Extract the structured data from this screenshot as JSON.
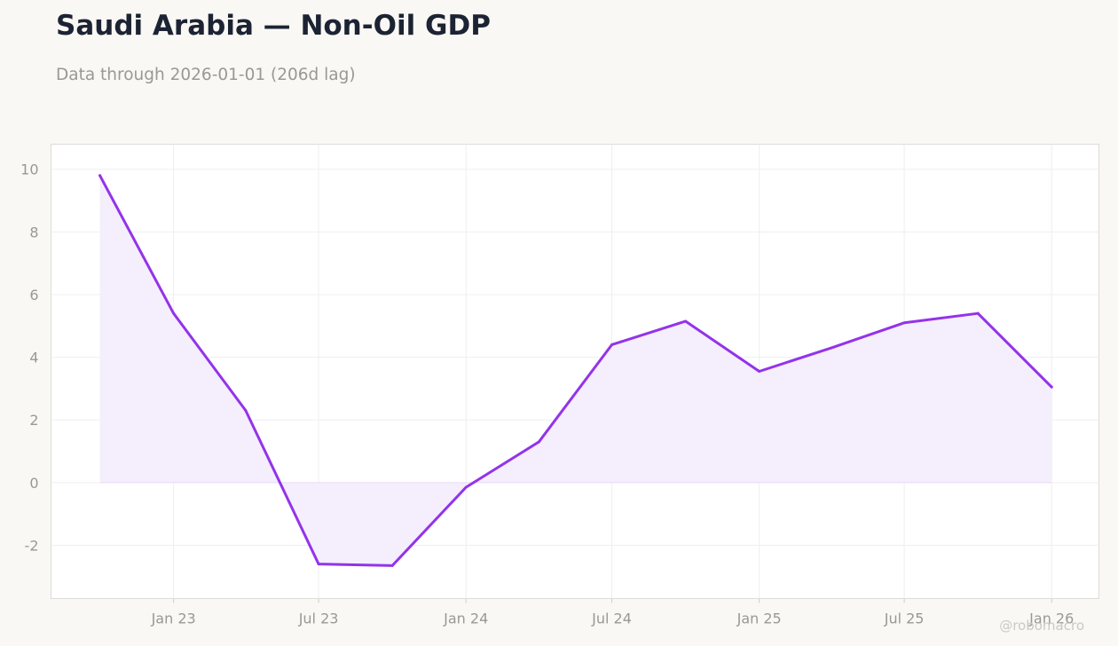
{
  "title": "Saudi Arabia — Non-Oil GDP",
  "subtitle": "Data through 2026-01-01 (206d lag)",
  "watermark": "@robomacro",
  "colors": {
    "line": "#9333ea",
    "fill": "#f5eefd",
    "background": "#f9f8f5",
    "plot_background": "#ffffff",
    "grid": "#efeef0"
  },
  "chart_data": {
    "type": "area",
    "title": "Saudi Arabia — Non-Oil GDP",
    "subtitle": "Data through 2026-01-01 (206d lag)",
    "x": [
      "2022-10-01",
      "2023-01-01",
      "2023-04-01",
      "2023-07-01",
      "2023-10-01",
      "2024-01-01",
      "2024-04-01",
      "2024-07-01",
      "2024-10-01",
      "2025-01-01",
      "2025-04-01",
      "2025-07-01",
      "2025-10-01",
      "2026-01-01"
    ],
    "series": [
      {
        "values": [
          9.8,
          5.4,
          2.3,
          -2.6,
          -2.65,
          -0.15,
          1.3,
          4.4,
          5.15,
          3.55,
          4.3,
          5.1,
          5.4,
          3.05
        ]
      }
    ],
    "x_ticks": [
      "2023-01-01",
      "2023-07-01",
      "2024-01-01",
      "2024-07-01",
      "2025-01-01",
      "2025-07-01",
      "2026-01-01"
    ],
    "x_tick_labels": [
      "Jan 23",
      "Jul 23",
      "Jan 24",
      "Jul 24",
      "Jan 25",
      "Jul 25",
      "Jan 26"
    ],
    "xlim": [
      "2022-08-01",
      "2026-03-01"
    ],
    "y_ticks": [
      -2,
      0,
      2,
      4,
      6,
      8,
      10
    ],
    "y_tick_labels": [
      "-2",
      "0",
      "2",
      "4",
      "6",
      "8",
      "10"
    ],
    "ylim": [
      -3.7,
      10.8
    ],
    "xlabel": "",
    "ylabel": "",
    "grid": true,
    "legend": "none"
  }
}
